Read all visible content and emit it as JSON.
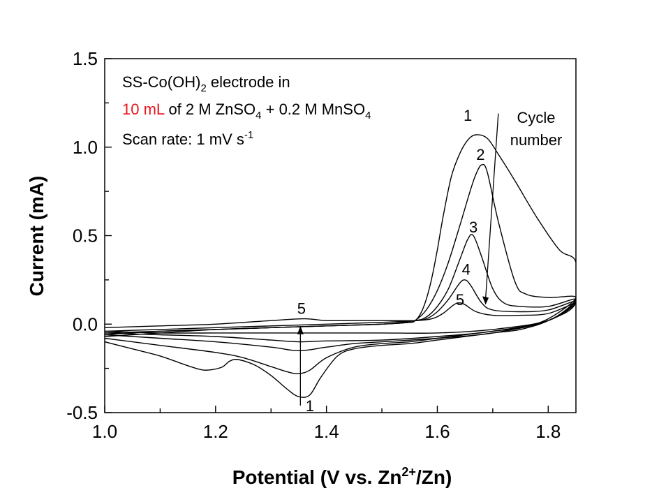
{
  "chart_data": {
    "type": "line",
    "xlabel": {
      "main": "Potential (V vs. Zn",
      "sup": "2+",
      "tail": "/Zn)"
    },
    "ylabel": "Current (mA)",
    "xlim": [
      1.0,
      1.85
    ],
    "ylim": [
      -0.5,
      1.5
    ],
    "xticks": [
      "1.0",
      "1.2",
      "1.4",
      "1.6",
      "1.8"
    ],
    "yticks": [
      "-0.5",
      "0.0",
      "0.5",
      "1.0",
      "1.5"
    ],
    "xtick_values": [
      1.0,
      1.2,
      1.4,
      1.6,
      1.8
    ],
    "ytick_values": [
      -0.5,
      0.0,
      0.5,
      1.0,
      1.5
    ],
    "info": {
      "line1_a": "SS-Co(OH)",
      "line1_sub": "2",
      "line1_b": " electrode in",
      "line2_red": "10 mL",
      "line2_a": " of 2 M ZnSO",
      "line2_sub1": "4",
      "line2_b": " + 0.2 M MnSO",
      "line2_sub2": "4",
      "line3_a": "Scan rate: 1 mV s",
      "line3_sup": "-1",
      "highlight_color": "#e8141b"
    },
    "legend_label": {
      "line1": "Cycle",
      "line2": "number"
    },
    "annotations": {
      "anodic_labels": [
        {
          "text": "1",
          "x": 1.655,
          "y": 1.18
        },
        {
          "text": "2",
          "x": 1.678,
          "y": 0.96
        },
        {
          "text": "3",
          "x": 1.665,
          "y": 0.55
        },
        {
          "text": "4",
          "x": 1.652,
          "y": 0.31
        },
        {
          "text": "5",
          "x": 1.641,
          "y": 0.14
        }
      ],
      "cathodic_labels": [
        {
          "text": "5",
          "x": 1.355,
          "y": 0.09
        },
        {
          "text": "1",
          "x": 1.37,
          "y": -0.46
        }
      ]
    },
    "series": [
      {
        "name": "1",
        "points": [
          [
            1.0,
            -0.1
          ],
          [
            1.05,
            -0.14
          ],
          [
            1.1,
            -0.18
          ],
          [
            1.15,
            -0.235
          ],
          [
            1.18,
            -0.26
          ],
          [
            1.21,
            -0.245
          ],
          [
            1.225,
            -0.21
          ],
          [
            1.24,
            -0.2
          ],
          [
            1.27,
            -0.23
          ],
          [
            1.3,
            -0.29
          ],
          [
            1.33,
            -0.37
          ],
          [
            1.35,
            -0.41
          ],
          [
            1.37,
            -0.4
          ],
          [
            1.39,
            -0.3
          ],
          [
            1.42,
            -0.18
          ],
          [
            1.45,
            -0.14
          ],
          [
            1.5,
            -0.12
          ],
          [
            1.55,
            -0.11
          ],
          [
            1.6,
            -0.09
          ],
          [
            1.65,
            -0.07
          ],
          [
            1.7,
            -0.05
          ],
          [
            1.75,
            -0.03
          ],
          [
            1.8,
            0.02
          ],
          [
            1.85,
            0.12
          ],
          [
            1.85,
            0.35
          ],
          [
            1.82,
            0.42
          ],
          [
            1.78,
            0.6
          ],
          [
            1.74,
            0.81
          ],
          [
            1.71,
            0.96
          ],
          [
            1.69,
            1.05
          ],
          [
            1.67,
            1.07
          ],
          [
            1.655,
            1.04
          ],
          [
            1.64,
            0.96
          ],
          [
            1.625,
            0.83
          ],
          [
            1.61,
            0.6
          ],
          [
            1.6,
            0.42
          ],
          [
            1.59,
            0.26
          ],
          [
            1.58,
            0.14
          ],
          [
            1.57,
            0.06
          ],
          [
            1.56,
            0.02
          ],
          [
            1.55,
            0.01
          ],
          [
            1.5,
            0.0
          ],
          [
            1.4,
            -0.01
          ],
          [
            1.3,
            -0.02
          ],
          [
            1.2,
            -0.03
          ],
          [
            1.1,
            -0.05
          ],
          [
            1.05,
            -0.06
          ],
          [
            1.0,
            -0.07
          ]
        ]
      },
      {
        "name": "2",
        "points": [
          [
            1.0,
            -0.08
          ],
          [
            1.05,
            -0.1
          ],
          [
            1.1,
            -0.12
          ],
          [
            1.2,
            -0.16
          ],
          [
            1.25,
            -0.19
          ],
          [
            1.3,
            -0.24
          ],
          [
            1.33,
            -0.27
          ],
          [
            1.35,
            -0.28
          ],
          [
            1.37,
            -0.26
          ],
          [
            1.4,
            -0.19
          ],
          [
            1.45,
            -0.13
          ],
          [
            1.5,
            -0.11
          ],
          [
            1.55,
            -0.1
          ],
          [
            1.6,
            -0.08
          ],
          [
            1.65,
            -0.06
          ],
          [
            1.7,
            -0.04
          ],
          [
            1.75,
            -0.02
          ],
          [
            1.8,
            0.03
          ],
          [
            1.85,
            0.15
          ],
          [
            1.8,
            0.15
          ],
          [
            1.76,
            0.17
          ],
          [
            1.74,
            0.24
          ],
          [
            1.71,
            0.58
          ],
          [
            1.69,
            0.86
          ],
          [
            1.68,
            0.9
          ],
          [
            1.67,
            0.85
          ],
          [
            1.66,
            0.76
          ],
          [
            1.64,
            0.55
          ],
          [
            1.62,
            0.35
          ],
          [
            1.6,
            0.19
          ],
          [
            1.58,
            0.08
          ],
          [
            1.56,
            0.02
          ],
          [
            1.55,
            0.01
          ],
          [
            1.5,
            0.0
          ],
          [
            1.4,
            -0.01
          ],
          [
            1.3,
            -0.02
          ],
          [
            1.2,
            -0.03
          ],
          [
            1.1,
            -0.04
          ],
          [
            1.0,
            -0.06
          ]
        ]
      },
      {
        "name": "3",
        "points": [
          [
            1.0,
            -0.06
          ],
          [
            1.1,
            -0.08
          ],
          [
            1.2,
            -0.1
          ],
          [
            1.3,
            -0.13
          ],
          [
            1.35,
            -0.15
          ],
          [
            1.4,
            -0.13
          ],
          [
            1.45,
            -0.11
          ],
          [
            1.5,
            -0.1
          ],
          [
            1.6,
            -0.08
          ],
          [
            1.7,
            -0.05
          ],
          [
            1.8,
            0.02
          ],
          [
            1.85,
            0.14
          ],
          [
            1.8,
            0.1
          ],
          [
            1.75,
            0.1
          ],
          [
            1.72,
            0.12
          ],
          [
            1.7,
            0.2
          ],
          [
            1.68,
            0.38
          ],
          [
            1.665,
            0.5
          ],
          [
            1.655,
            0.48
          ],
          [
            1.64,
            0.36
          ],
          [
            1.62,
            0.2
          ],
          [
            1.6,
            0.1
          ],
          [
            1.58,
            0.04
          ],
          [
            1.56,
            0.02
          ],
          [
            1.5,
            0.0
          ],
          [
            1.4,
            -0.01
          ],
          [
            1.3,
            -0.02
          ],
          [
            1.2,
            -0.03
          ],
          [
            1.1,
            -0.04
          ],
          [
            1.0,
            -0.05
          ]
        ]
      },
      {
        "name": "4",
        "points": [
          [
            1.0,
            -0.05
          ],
          [
            1.1,
            -0.06
          ],
          [
            1.2,
            -0.07
          ],
          [
            1.3,
            -0.09
          ],
          [
            1.35,
            -0.1
          ],
          [
            1.4,
            -0.095
          ],
          [
            1.5,
            -0.09
          ],
          [
            1.6,
            -0.07
          ],
          [
            1.7,
            -0.04
          ],
          [
            1.8,
            0.02
          ],
          [
            1.85,
            0.13
          ],
          [
            1.8,
            0.08
          ],
          [
            1.75,
            0.07
          ],
          [
            1.7,
            0.08
          ],
          [
            1.68,
            0.12
          ],
          [
            1.66,
            0.22
          ],
          [
            1.65,
            0.25
          ],
          [
            1.64,
            0.23
          ],
          [
            1.62,
            0.14
          ],
          [
            1.6,
            0.07
          ],
          [
            1.58,
            0.03
          ],
          [
            1.56,
            0.02
          ],
          [
            1.5,
            0.01
          ],
          [
            1.4,
            0.0
          ],
          [
            1.3,
            -0.01
          ],
          [
            1.2,
            -0.02
          ],
          [
            1.1,
            -0.03
          ],
          [
            1.0,
            -0.04
          ]
        ]
      },
      {
        "name": "5",
        "points": [
          [
            1.0,
            -0.04
          ],
          [
            1.1,
            -0.05
          ],
          [
            1.2,
            -0.05
          ],
          [
            1.3,
            -0.05
          ],
          [
            1.35,
            -0.05
          ],
          [
            1.4,
            -0.05
          ],
          [
            1.5,
            -0.05
          ],
          [
            1.6,
            -0.05
          ],
          [
            1.7,
            -0.03
          ],
          [
            1.8,
            0.02
          ],
          [
            1.85,
            0.12
          ],
          [
            1.8,
            0.06
          ],
          [
            1.75,
            0.05
          ],
          [
            1.7,
            0.05
          ],
          [
            1.67,
            0.07
          ],
          [
            1.65,
            0.11
          ],
          [
            1.64,
            0.12
          ],
          [
            1.63,
            0.11
          ],
          [
            1.61,
            0.06
          ],
          [
            1.59,
            0.03
          ],
          [
            1.56,
            0.02
          ],
          [
            1.5,
            0.02
          ],
          [
            1.45,
            0.02
          ],
          [
            1.4,
            0.02
          ],
          [
            1.36,
            0.03
          ],
          [
            1.3,
            0.02
          ],
          [
            1.2,
            0.0
          ],
          [
            1.1,
            -0.01
          ],
          [
            1.0,
            -0.02
          ]
        ]
      }
    ]
  }
}
